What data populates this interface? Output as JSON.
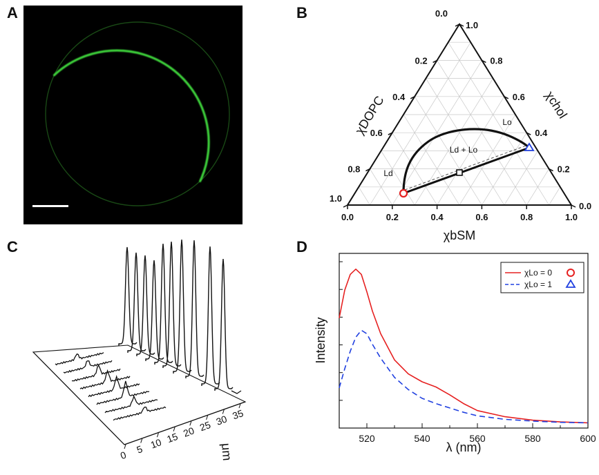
{
  "panels": {
    "a": "A",
    "b": "B",
    "c": "C",
    "d": "D"
  },
  "colors": {
    "membrane_green": "#39c936",
    "red": "#e62020",
    "blue": "#2040e0"
  },
  "ternary": {
    "left_axis_label": "χDOPC",
    "right_axis_label": "χchol",
    "bottom_axis_label": "χbSM",
    "bottom_ticks": [
      "0.0",
      "0.2",
      "0.4",
      "0.6",
      "0.8",
      "1.0"
    ],
    "left_ticks": [
      "0.0",
      "0.2",
      "0.4",
      "0.6",
      "0.8",
      "1.0"
    ],
    "right_ticks": [
      "0.0",
      "0.2",
      "0.4",
      "0.6",
      "0.8",
      "1.0"
    ],
    "region_labels": {
      "ld": "Ld",
      "lo": "Lo",
      "coexist": "Ld + Lo"
    },
    "markers": {
      "ld_circle": "red-circle",
      "lo_triangle": "blue-triangle",
      "mid_square": "black-square"
    }
  },
  "waterfall": {
    "axis_label": "μm",
    "ticks": [
      "0",
      "5",
      "10",
      "15",
      "20",
      "25",
      "30",
      "35"
    ]
  },
  "chart_data": [
    {
      "type": "line",
      "panel": "D",
      "xlabel": "λ (nm)",
      "ylabel": "Intensity",
      "xlim": [
        510,
        600
      ],
      "x_ticks": [
        "520",
        "540",
        "560",
        "580",
        "600"
      ],
      "legend_position": "top-right",
      "series": [
        {
          "name": "χLo = 0",
          "legend_sym": "red-circle",
          "color": "#e62020",
          "style": "solid",
          "x": [
            510,
            512,
            514,
            516,
            518,
            520,
            522,
            525,
            530,
            535,
            540,
            545,
            550,
            555,
            560,
            570,
            580,
            590,
            600
          ],
          "y": [
            0.63,
            0.79,
            0.88,
            0.91,
            0.88,
            0.78,
            0.67,
            0.54,
            0.39,
            0.31,
            0.265,
            0.235,
            0.19,
            0.14,
            0.1,
            0.065,
            0.045,
            0.035,
            0.03
          ]
        },
        {
          "name": "χLo = 1",
          "legend_sym": "blue-triangle",
          "color": "#2040e0",
          "style": "dashed",
          "x": [
            510,
            512,
            514,
            516,
            518,
            520,
            522,
            525,
            530,
            535,
            540,
            545,
            550,
            555,
            560,
            570,
            580,
            590,
            600
          ],
          "y": [
            0.23,
            0.34,
            0.44,
            0.52,
            0.56,
            0.54,
            0.48,
            0.4,
            0.29,
            0.22,
            0.17,
            0.14,
            0.115,
            0.09,
            0.07,
            0.05,
            0.04,
            0.033,
            0.03
          ]
        }
      ]
    }
  ]
}
